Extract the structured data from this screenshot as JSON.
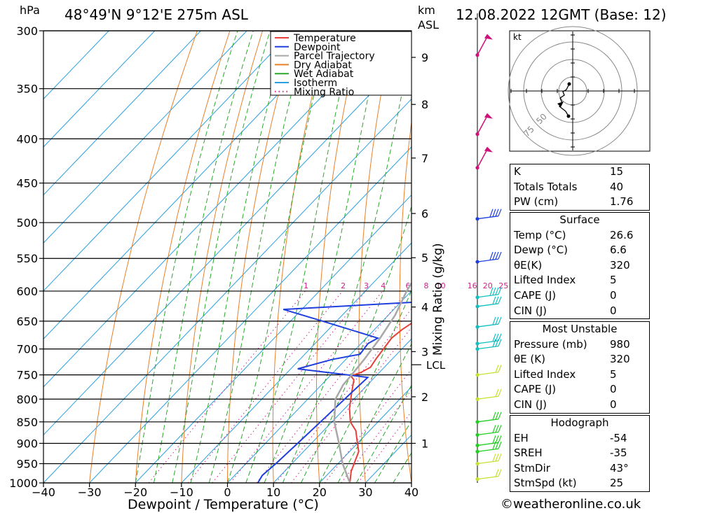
{
  "header": {
    "pressure_unit": "hPa",
    "location": "48°49'N  9°12'E  275m  ASL",
    "km_label": "km",
    "asl_label": "ASL",
    "datetime": "12.08.2022  12GMT  (Base: 12)"
  },
  "chart_data": {
    "type": "line",
    "title": "48°49'N  9°12'E  275m  ASL",
    "xlabel": "Dewpoint / Temperature (°C)",
    "ylabel": "hPa",
    "right_label": "Mixing Ratio (g/kg)",
    "xlim": [
      -40,
      40
    ],
    "ylim": [
      1000,
      300
    ],
    "x_ticks": [
      -40,
      -30,
      -20,
      -10,
      0,
      10,
      20,
      30,
      40
    ],
    "x_tick_labels": [
      "−40",
      "−30",
      "−20",
      "−10",
      "0",
      "10",
      "20",
      "30",
      "40"
    ],
    "pressure_levels": [
      300,
      350,
      400,
      450,
      500,
      550,
      600,
      650,
      700,
      750,
      800,
      850,
      900,
      950,
      1000
    ],
    "km_ticks": [
      {
        "label": "9",
        "p": 322
      },
      {
        "label": "8",
        "p": 365
      },
      {
        "label": "7",
        "p": 421
      },
      {
        "label": "6",
        "p": 488
      },
      {
        "label": "5",
        "p": 549
      },
      {
        "label": "4",
        "p": 626
      },
      {
        "label": "3",
        "p": 705
      },
      {
        "label": "2",
        "p": 795
      },
      {
        "label": "1",
        "p": 900
      }
    ],
    "lcl_label": "LCL",
    "lcl_pressure": 730,
    "mixing_ratio_labels": [
      "1",
      "2",
      "3",
      "4",
      "6",
      "8",
      "10",
      "16",
      "20",
      "25"
    ],
    "legend": [
      "Temperature",
      "Dewpoint",
      "Parcel Trajectory",
      "Dry Adiabat",
      "Wet Adiabat",
      "Isotherm",
      "Mixing Ratio"
    ],
    "series": [
      {
        "name": "Temperature",
        "color": "#e8403a",
        "points": [
          [
            26.6,
            1000
          ],
          [
            24.5,
            970
          ],
          [
            23.5,
            950
          ],
          [
            22,
            920
          ],
          [
            20,
            900
          ],
          [
            17,
            870
          ],
          [
            14,
            850
          ],
          [
            11,
            820
          ],
          [
            8.5,
            790
          ],
          [
            6,
            760
          ],
          [
            4.5,
            752
          ],
          [
            6,
            745
          ],
          [
            7,
            735
          ],
          [
            6.5,
            720
          ],
          [
            6,
            700
          ],
          [
            5.5,
            680
          ],
          [
            6,
            665
          ],
          [
            7,
            650
          ],
          [
            6.5,
            630
          ],
          [
            5,
            610
          ],
          [
            3.5,
            590
          ],
          [
            2,
            570
          ],
          [
            1,
            550
          ],
          [
            1,
            530
          ],
          [
            0,
            510
          ],
          [
            -1.5,
            490
          ],
          [
            -3.5,
            470
          ],
          [
            -5,
            450
          ],
          [
            -7,
            430
          ],
          [
            -9,
            410
          ],
          [
            -10.5,
            400
          ],
          [
            -13,
            380
          ],
          [
            -14.5,
            365
          ],
          [
            -15,
            350
          ],
          [
            -17,
            330
          ],
          [
            -19,
            310
          ],
          [
            -20,
            300
          ]
        ]
      },
      {
        "name": "Dewpoint",
        "color": "#1f3fdf",
        "points": [
          [
            6.6,
            1000
          ],
          [
            6,
            980
          ],
          [
            6.5,
            950
          ],
          [
            7,
            900
          ],
          [
            7.5,
            850
          ],
          [
            8,
            800
          ],
          [
            8.5,
            755
          ],
          [
            -8.5,
            738
          ],
          [
            -3,
            720
          ],
          [
            2,
            710
          ],
          [
            1.5,
            690
          ],
          [
            2.5,
            680
          ],
          [
            -13,
            650
          ],
          [
            -24,
            630
          ],
          [
            3,
            618
          ],
          [
            3,
            560
          ],
          [
            -7,
            540
          ],
          [
            -7,
            510
          ],
          [
            -3,
            490
          ],
          [
            -7,
            460
          ],
          [
            -12,
            425
          ],
          [
            -14,
            410
          ],
          [
            -14.5,
            400
          ],
          [
            -13,
            390
          ],
          [
            -9,
            375
          ],
          [
            -14,
            360
          ],
          [
            -18,
            350
          ],
          [
            -17,
            330
          ],
          [
            -17,
            300
          ]
        ]
      },
      {
        "name": "Parcel Trajectory",
        "color": "#a8a8a8",
        "points": [
          [
            26.6,
            1000
          ],
          [
            21,
            950
          ],
          [
            16,
            900
          ],
          [
            10.5,
            850
          ],
          [
            6,
            800
          ],
          [
            4.7,
            770
          ],
          [
            4.5,
            752
          ],
          [
            4,
            720
          ],
          [
            3,
            680
          ],
          [
            1.5,
            640
          ],
          [
            -1,
            600
          ],
          [
            -3,
            560
          ],
          [
            -5.5,
            520
          ],
          [
            -8,
            480
          ],
          [
            -12,
            440
          ],
          [
            -15,
            410
          ],
          [
            -18.5,
            380
          ],
          [
            -21,
            350
          ],
          [
            -25,
            320
          ],
          [
            -27,
            300
          ]
        ]
      }
    ]
  },
  "hodograph": {
    "unit_label": "kt",
    "ring_labels": [
      "50",
      "75"
    ]
  },
  "indices": [
    {
      "label": "K",
      "value": "15"
    },
    {
      "label": "Totals Totals",
      "value": "40"
    },
    {
      "label": "PW (cm)",
      "value": "1.76"
    }
  ],
  "surface": {
    "title": "Surface",
    "rows": [
      {
        "label": "Temp (°C)",
        "value": "26.6"
      },
      {
        "label": "Dewp (°C)",
        "value": "6.6"
      },
      {
        "label": "θE(K)",
        "value": "320"
      },
      {
        "label": "Lifted Index",
        "value": "5"
      },
      {
        "label": "CAPE (J)",
        "value": "0"
      },
      {
        "label": "CIN (J)",
        "value": "0"
      }
    ]
  },
  "most_unstable": {
    "title": "Most Unstable",
    "rows": [
      {
        "label": "Pressure (mb)",
        "value": "980"
      },
      {
        "label": "θE (K)",
        "value": "320"
      },
      {
        "label": "Lifted Index",
        "value": "5"
      },
      {
        "label": "CAPE (J)",
        "value": "0"
      },
      {
        "label": "CIN (J)",
        "value": "0"
      }
    ]
  },
  "hodograph_table": {
    "title": "Hodograph",
    "rows": [
      {
        "label": "EH",
        "value": "-54"
      },
      {
        "label": "SREH",
        "value": "-35"
      },
      {
        "label": "StmDir",
        "value": "43°"
      },
      {
        "label": "StmSpd (kt)",
        "value": "25"
      }
    ]
  },
  "footer": {
    "copyright": "©weatheronline.co.uk"
  },
  "colors": {
    "temperature": "#e8403a",
    "dewpoint": "#1f3fdf",
    "parcel": "#a8a8a8",
    "dry_adiabat": "#e8802a",
    "wet_adiabat": "#2aa82a",
    "isotherm": "#2aa0e0",
    "mixing": "#d0208a",
    "wind_magenta": "#d0107a",
    "wind_cyan": "#10c0c0",
    "wind_lime": "#c8e030",
    "wind_green": "#20d020"
  }
}
